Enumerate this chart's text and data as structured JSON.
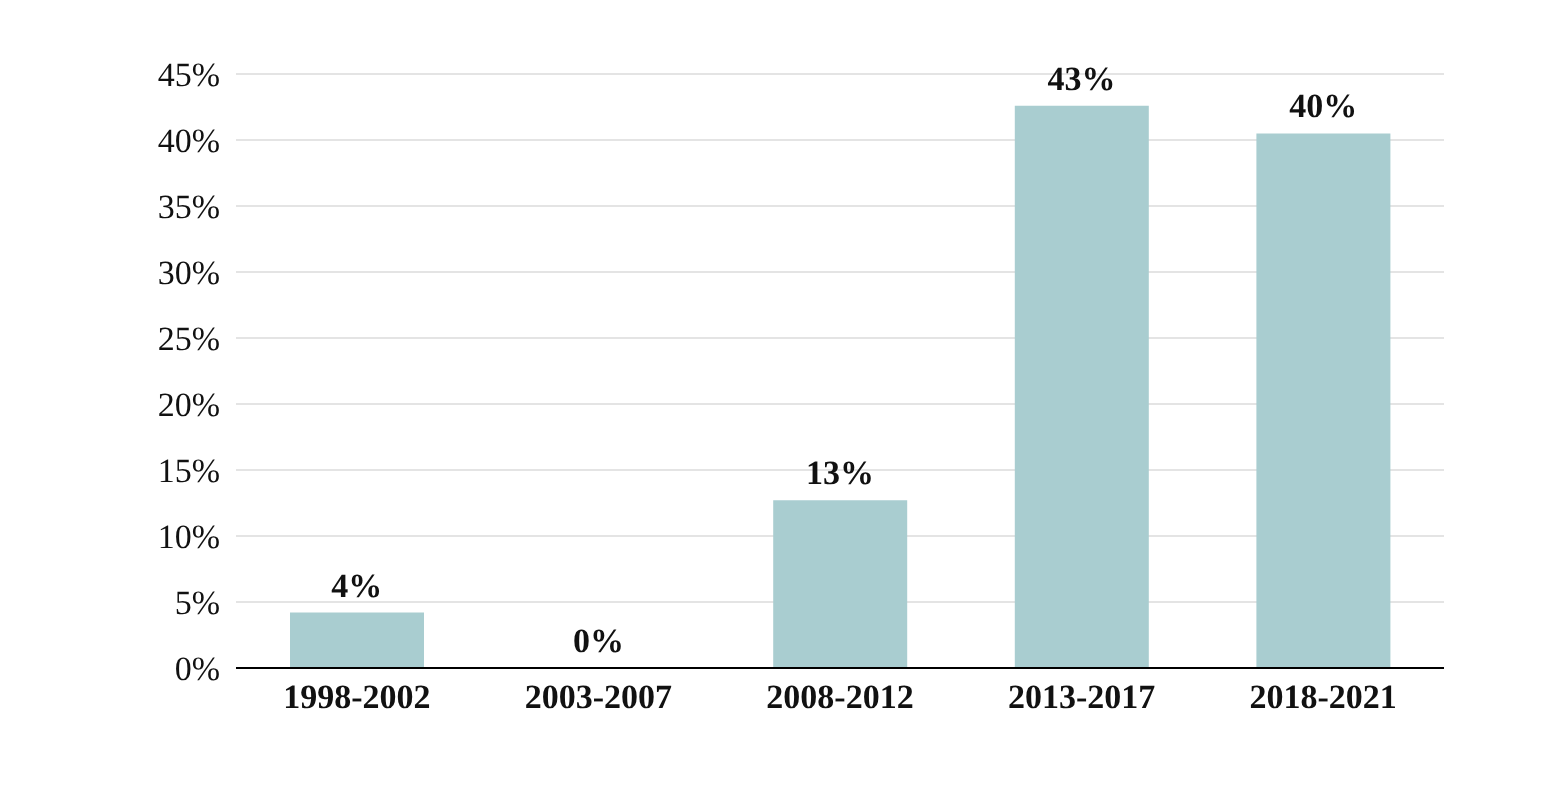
{
  "chart_data": {
    "type": "bar",
    "categories": [
      "1998-2002",
      "2003-2007",
      "2008-2012",
      "2013-2017",
      "2018-2021"
    ],
    "values": [
      4.2,
      0,
      12.7,
      42.6,
      40.5
    ],
    "value_labels": [
      "4%",
      "0%",
      "13%",
      "43%",
      "40%"
    ],
    "color": "#a9cdd0",
    "ylim": [
      0,
      45
    ],
    "yticks": [
      {
        "value": 0,
        "label": "0%"
      },
      {
        "value": 5,
        "label": "5%"
      },
      {
        "value": 10,
        "label": "10%"
      },
      {
        "value": 15,
        "label": "15%"
      },
      {
        "value": 20,
        "label": "20%"
      },
      {
        "value": 25,
        "label": "25%"
      },
      {
        "value": 30,
        "label": "30%"
      },
      {
        "value": 35,
        "label": "35%"
      },
      {
        "value": 40,
        "label": "40%"
      },
      {
        "value": 45,
        "label": "45%"
      }
    ],
    "grid": "y"
  }
}
